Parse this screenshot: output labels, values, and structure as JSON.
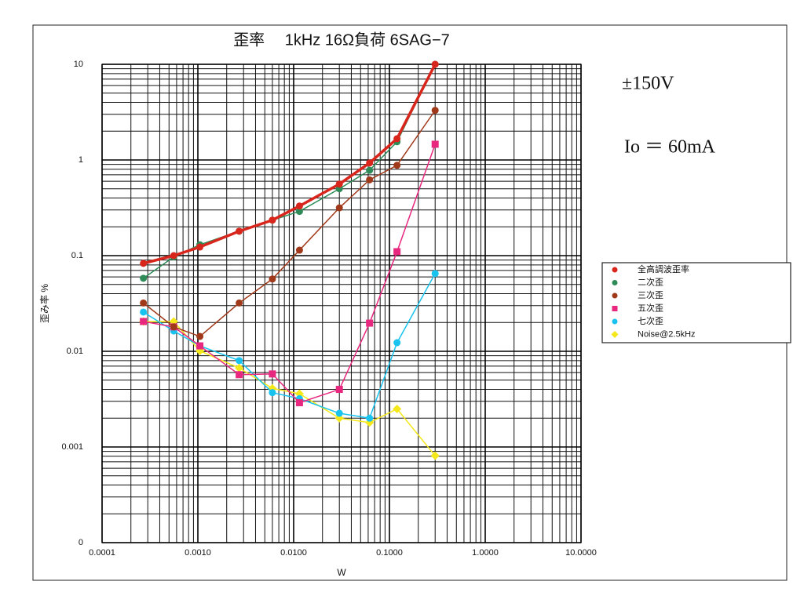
{
  "chart_data": {
    "type": "line",
    "title": "歪率　 1kHz 16Ω負荷 6SAG−7",
    "xlabel": "W",
    "ylabel": "歪み率 %",
    "annotations": [
      "±150V",
      "Io ＝ 60mA"
    ],
    "log_x": true,
    "log_y": true,
    "grid": true,
    "legend": "right",
    "x": [
      0.00027,
      0.00056,
      0.00105,
      0.0027,
      0.006,
      0.0115,
      0.03,
      0.062,
      0.12,
      0.3
    ],
    "xlim": [
      0.0001,
      10
    ],
    "xticks": [
      0.0001,
      {
        "value": 0.001,
        "label": "0.0010"
      },
      {
        "value": 0.01,
        "label": "0.0100"
      },
      {
        "value": 0.1,
        "label": "0.1000"
      },
      {
        "value": 1,
        "label": "1.0000"
      },
      {
        "value": 10,
        "label": "10.0000"
      }
    ],
    "ylim": [
      0.0001,
      10
    ],
    "yticks": [
      {
        "value": 0.0001,
        "label": "0"
      },
      0.001,
      0.01,
      0.1,
      1,
      10
    ],
    "series": [
      {
        "name": "全高調波歪率",
        "color": "#d9261c",
        "marker": "circle",
        "line_width": 3.5,
        "values": [
          0.083,
          0.1,
          0.123,
          0.18,
          0.235,
          0.33,
          0.56,
          0.93,
          1.67,
          10
        ]
      },
      {
        "name": "二次歪",
        "color": "#2e8b57",
        "marker": "circle",
        "line_width": 1.5,
        "values": [
          0.058,
          0.097,
          0.13,
          0.18,
          0.235,
          0.29,
          0.5,
          0.78,
          1.55,
          10
        ]
      },
      {
        "name": "三次歪",
        "color": "#a0391a",
        "marker": "circle",
        "line_width": 1.5,
        "values": [
          0.032,
          0.018,
          0.0143,
          0.032,
          0.057,
          0.114,
          0.316,
          0.62,
          0.88,
          3.3
        ]
      },
      {
        "name": "五次歪",
        "color": "#e8287f",
        "marker": "square",
        "line_width": 1.5,
        "values": [
          0.0205,
          0.018,
          0.0114,
          0.0057,
          0.0058,
          0.0029,
          0.004,
          0.0197,
          0.11,
          1.46
        ]
      },
      {
        "name": "七次歪",
        "color": "#19c3ef",
        "marker": "circle",
        "line_width": 1.5,
        "values": [
          0.0257,
          0.0163,
          0.0114,
          0.008,
          0.0037,
          0.0032,
          0.00225,
          0.002,
          0.0123,
          0.065
        ]
      },
      {
        "name": "Noise@2.5kHz",
        "color": "#f5e81a",
        "marker": "diamond",
        "line_width": 1.5,
        "values": [
          0.0205,
          0.0205,
          0.0101,
          0.0067,
          0.0041,
          0.0036,
          0.002,
          0.0018,
          0.0025,
          0.00081
        ]
      }
    ]
  }
}
